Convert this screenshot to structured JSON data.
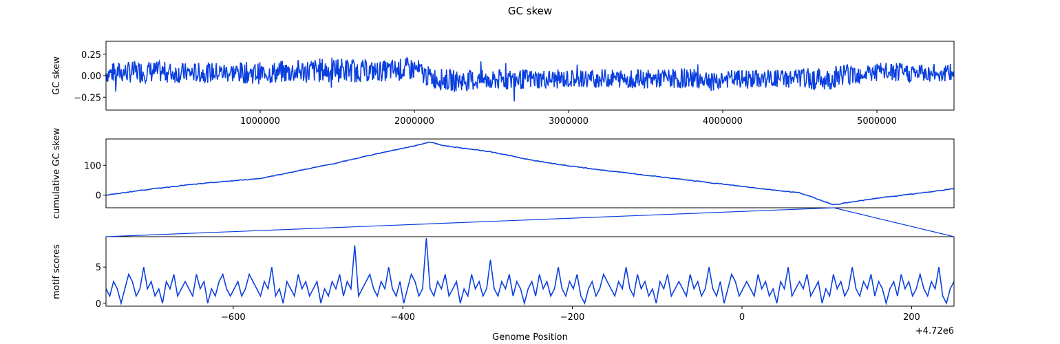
{
  "figure": {
    "title": "GC skew",
    "line_color": "#0a3fdf"
  },
  "chart_data": [
    {
      "type": "line",
      "ylabel": "GC skew",
      "xlim": [
        1,
        5500000
      ],
      "ylim": [
        -0.4,
        0.4
      ],
      "xticks": [
        1000000,
        2000000,
        3000000,
        4000000,
        5000000
      ],
      "xtick_labels": [
        "1000000",
        "2000000",
        "3000000",
        "4000000",
        "5000000"
      ],
      "xticks_position": "bottom",
      "yticks": [
        0.25,
        0.0,
        -0.25
      ],
      "ytick_labels": [
        "0.25",
        "0.00",
        "−0.25"
      ],
      "series": [
        {
          "x": [
            0,
            250000,
            500000,
            750000,
            1000000,
            1250000,
            1500000,
            1750000,
            2000000,
            2100000,
            2250000,
            2500000,
            2750000,
            3000000,
            3250000,
            3500000,
            3750000,
            4000000,
            4250000,
            4500000,
            4700000,
            4750000,
            5000000,
            5250000,
            5500000
          ],
          "y": [
            0.03,
            0.05,
            0.03,
            0.04,
            0.03,
            0.05,
            0.07,
            0.05,
            0.08,
            -0.02,
            -0.06,
            -0.05,
            -0.04,
            -0.04,
            -0.03,
            -0.04,
            -0.03,
            -0.04,
            -0.04,
            -0.03,
            -0.05,
            0.02,
            0.04,
            0.03,
            0.03
          ],
          "envelope": [
            0.12,
            0.13,
            0.12,
            0.12,
            0.13,
            0.14,
            0.15,
            0.12,
            0.14,
            0.12,
            0.13,
            0.12,
            0.12,
            0.11,
            0.11,
            0.11,
            0.12,
            0.11,
            0.11,
            0.12,
            0.13,
            0.13,
            0.12,
            0.11,
            0.11
          ]
        }
      ]
    },
    {
      "type": "line",
      "ylabel": "cumulative GC skew",
      "xlim": [
        1,
        5500000
      ],
      "ylim": [
        -42,
        188
      ],
      "yticks": [
        100,
        0
      ],
      "ytick_labels": [
        "100",
        "0"
      ],
      "series": [
        {
          "x": [
            0,
            250000,
            500000,
            750000,
            1000000,
            1250000,
            1500000,
            1750000,
            2000000,
            2100000,
            2200000,
            2500000,
            2750000,
            3000000,
            3250000,
            3500000,
            3750000,
            4000000,
            4250000,
            4500000,
            4720000,
            5000000,
            5250000,
            5500000
          ],
          "y": [
            0,
            18,
            33,
            45,
            56,
            82,
            108,
            138,
            165,
            178,
            165,
            145,
            118,
            98,
            82,
            67,
            52,
            37,
            22,
            8,
            -32,
            -10,
            5,
            22
          ]
        }
      ]
    },
    {
      "type": "line",
      "ylabel": "motif scores",
      "xlabel": "Genome Position",
      "x_offset_text": "+4.72e6",
      "xlim": [
        -750,
        250
      ],
      "ylim": [
        -0.4,
        9.2
      ],
      "xticks": [
        -600,
        -400,
        -200,
        0,
        200
      ],
      "xtick_labels": [
        "−600",
        "−400",
        "−200",
        "0",
        "200"
      ],
      "yticks": [
        5,
        0
      ],
      "ytick_labels": [
        "5",
        "0"
      ],
      "series": [
        {
          "y": [
            2,
            1,
            3,
            2,
            0,
            2,
            4,
            3,
            1,
            2,
            5,
            2,
            3,
            1,
            2,
            0,
            3,
            2,
            4,
            1,
            2,
            3,
            2,
            1,
            4,
            2,
            3,
            0,
            2,
            1,
            3,
            4,
            2,
            1,
            2,
            3,
            1,
            2,
            4,
            3,
            2,
            1,
            3,
            2,
            5,
            1,
            2,
            0,
            3,
            2,
            1,
            4,
            2,
            3,
            1,
            2,
            3,
            0,
            2,
            1,
            3,
            2,
            4,
            1,
            3,
            2,
            8,
            1,
            2,
            3,
            4,
            2,
            1,
            3,
            2,
            5,
            2,
            1,
            3,
            0,
            2,
            4,
            3,
            1,
            2,
            9,
            2,
            1,
            3,
            2,
            4,
            1,
            2,
            3,
            0,
            2,
            1,
            4,
            2,
            3,
            1,
            2,
            6,
            2,
            1,
            3,
            2,
            4,
            1,
            3,
            2,
            0,
            2,
            3,
            1,
            4,
            2,
            3,
            1,
            2,
            5,
            2,
            1,
            3,
            2,
            4,
            1,
            0,
            2,
            3,
            1,
            2,
            4,
            3,
            2,
            1,
            3,
            2,
            5,
            2,
            1,
            4,
            2,
            3,
            1,
            2,
            0,
            3,
            2,
            4,
            1,
            2,
            3,
            2,
            1,
            4,
            2,
            3,
            1,
            2,
            5,
            2,
            1,
            3,
            0,
            2,
            4,
            3,
            1,
            2,
            3,
            2,
            1,
            4,
            2,
            3,
            1,
            2,
            0,
            3,
            2,
            5,
            1,
            2,
            3,
            2,
            4,
            1,
            2,
            3,
            0,
            2,
            1,
            4,
            2,
            3,
            1,
            2,
            5,
            2,
            1,
            3,
            2,
            4,
            1,
            3,
            2,
            0,
            2,
            3,
            1,
            4,
            2,
            3,
            1,
            2,
            4,
            2,
            1,
            3,
            2,
            5,
            1,
            0,
            2,
            3
          ]
        }
      ],
      "connector_at_x": 4720105
    }
  ]
}
